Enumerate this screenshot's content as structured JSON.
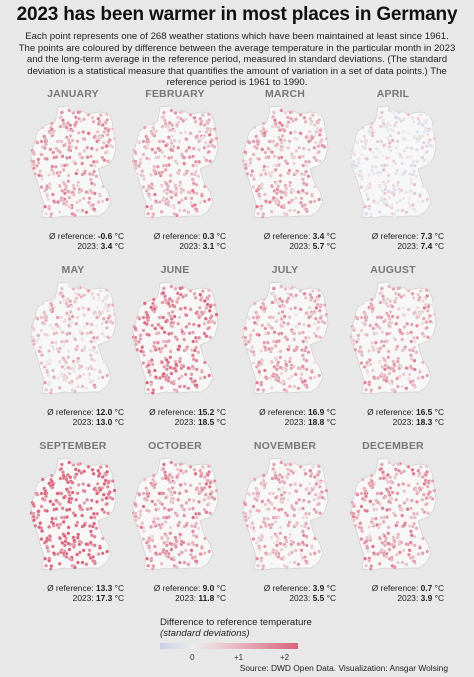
{
  "title": "2023 has been warmer in most places in Germany",
  "subtitle": "Each point represents one of 268 weather stations which have been maintained at least since 1961. The points are coloured by difference between the average temperature in the particular month in 2023 and the long-term average in the reference period, measured in standard deviations. (The standard deviation is a statistical measure that quantifies the amount of variation in a set of data points.) The reference period is 1961 to 1990.",
  "labels": {
    "reference": "Ø reference:",
    "year": "2023:",
    "unit": "°C"
  },
  "legend": {
    "title": "Difference to reference temperature",
    "subtitle": "(standard deviations)",
    "ticks": [
      "0",
      "+1",
      "+2"
    ],
    "colors": {
      "negative": "#c9cfe7",
      "zero": "#ececec",
      "positive": "#d7637a"
    }
  },
  "source": "Source: DWD Open Data. Visualization: Ansgar Wolsing",
  "chart_data": {
    "type": "table",
    "station_count": 268,
    "reference_period": "1961–1990",
    "months": [
      {
        "name": "JANUARY",
        "reference": "-0.6",
        "y2023": "3.4",
        "mean_sd": 1.1
      },
      {
        "name": "FEBRUARY",
        "reference": "0.3",
        "y2023": "3.1",
        "mean_sd": 1.0
      },
      {
        "name": "MARCH",
        "reference": "3.4",
        "y2023": "5.7",
        "mean_sd": 1.0
      },
      {
        "name": "APRIL",
        "reference": "7.3",
        "y2023": "7.4",
        "mean_sd": 0.05
      },
      {
        "name": "MAY",
        "reference": "12.0",
        "y2023": "13.0",
        "mean_sd": 0.55
      },
      {
        "name": "JUNE",
        "reference": "15.2",
        "y2023": "18.5",
        "mean_sd": 1.6
      },
      {
        "name": "JULY",
        "reference": "16.9",
        "y2023": "18.8",
        "mean_sd": 0.95
      },
      {
        "name": "AUGUST",
        "reference": "16.5",
        "y2023": "18.3",
        "mean_sd": 0.9
      },
      {
        "name": "SEPTEMBER",
        "reference": "13.3",
        "y2023": "17.3",
        "mean_sd": 2.0
      },
      {
        "name": "OCTOBER",
        "reference": "9.0",
        "y2023": "11.8",
        "mean_sd": 1.2
      },
      {
        "name": "NOVEMBER",
        "reference": "3.9",
        "y2023": "5.5",
        "mean_sd": 0.8
      },
      {
        "name": "DECEMBER",
        "reference": "0.7",
        "y2023": "3.9",
        "mean_sd": 1.2
      }
    ]
  }
}
